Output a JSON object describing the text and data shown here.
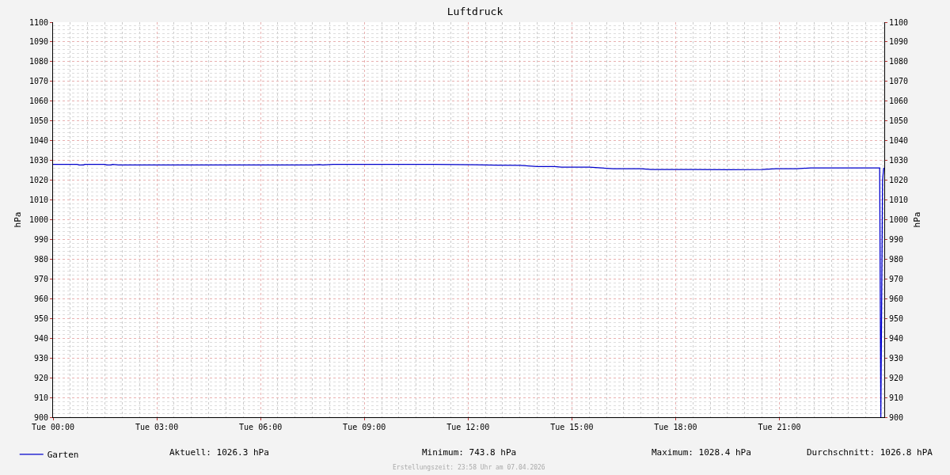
{
  "chart_data": {
    "type": "line",
    "title": "Luftdruck",
    "ylabel": "hPa",
    "y2label": "hPa",
    "x": [
      "2026-04-07T00:00",
      "2026-04-07T00:42",
      "2026-04-07T00:45",
      "2026-04-07T00:53",
      "2026-04-07T00:55",
      "2026-04-07T01:30",
      "2026-04-07T01:33",
      "2026-04-07T01:41",
      "2026-04-07T01:43",
      "2026-04-07T01:54",
      "2026-04-07T02:00",
      "2026-04-07T04:30",
      "2026-04-07T06:00",
      "2026-04-07T07:30",
      "2026-04-07T07:42",
      "2026-04-07T07:48",
      "2026-04-07T08:06",
      "2026-04-07T09:00",
      "2026-04-07T10:00",
      "2026-04-07T11:00",
      "2026-04-07T12:12",
      "2026-04-07T12:30",
      "2026-04-07T12:48",
      "2026-04-07T13:30",
      "2026-04-07T14:00",
      "2026-04-07T14:30",
      "2026-04-07T14:42",
      "2026-04-07T15:30",
      "2026-04-07T16:12",
      "2026-04-07T17:00",
      "2026-04-07T17:18",
      "2026-04-07T18:30",
      "2026-04-07T19:30",
      "2026-04-07T20:30",
      "2026-04-07T20:54",
      "2026-04-07T21:30",
      "2026-04-07T21:54",
      "2026-04-07T23:00",
      "2026-04-07T23:54",
      "2026-04-07T23:56",
      "2026-04-07T23:59",
      "2026-04-08T00:01"
    ],
    "series": [
      {
        "name": "Garten",
        "color": "#0000cc",
        "values": [
          1028.0,
          1028.0,
          1027.7,
          1027.7,
          1028.0,
          1028.0,
          1027.7,
          1027.7,
          1028.0,
          1027.7,
          1027.7,
          1027.7,
          1027.7,
          1027.7,
          1027.9,
          1027.7,
          1028.0,
          1028.0,
          1028.0,
          1028.0,
          1027.8,
          1027.7,
          1027.6,
          1027.5,
          1026.9,
          1026.9,
          1026.6,
          1026.6,
          1025.8,
          1025.8,
          1025.4,
          1025.4,
          1025.3,
          1025.4,
          1025.8,
          1025.8,
          1026.2,
          1026.2,
          1026.2,
          900,
          1020,
          1026.3
        ]
      }
    ],
    "xlim": [
      "2026-04-07T00:00",
      "2026-04-08T00:02"
    ],
    "xticks": [
      {
        "value": "2026-04-07T00:00",
        "label": "Tue 00:00"
      },
      {
        "value": "2026-04-07T03:00",
        "label": "Tue 03:00"
      },
      {
        "value": "2026-04-07T06:00",
        "label": "Tue 06:00"
      },
      {
        "value": "2026-04-07T09:00",
        "label": "Tue 09:00"
      },
      {
        "value": "2026-04-07T12:00",
        "label": "Tue 12:00"
      },
      {
        "value": "2026-04-07T15:00",
        "label": "Tue 15:00"
      },
      {
        "value": "2026-04-07T18:00",
        "label": "Tue 18:00"
      },
      {
        "value": "2026-04-07T21:00",
        "label": "Tue 21:00"
      }
    ],
    "ylim": [
      900,
      1100
    ],
    "yticks": [
      900,
      910,
      920,
      930,
      940,
      950,
      960,
      970,
      980,
      990,
      1000,
      1010,
      1020,
      1030,
      1040,
      1050,
      1060,
      1070,
      1080,
      1090,
      1100
    ],
    "y2lim": [
      900,
      1100
    ],
    "y2ticks": [
      900,
      910,
      920,
      930,
      940,
      950,
      960,
      970,
      980,
      990,
      1000,
      1010,
      1020,
      1030,
      1040,
      1050,
      1060,
      1070,
      1080,
      1090,
      1100
    ],
    "grid": true,
    "legend": "bottom left",
    "marker": "none",
    "line_style": "solid",
    "annotations": [
      "Aktuell: 1026.3 hPa",
      "Minimum: 743.8 hPa",
      "Maximum: 1028.4 hPa",
      "Durchschnitt: 1026.8 hPA",
      "Erstellungszeit: 23:58 Uhr am 07.04.2026"
    ]
  }
}
